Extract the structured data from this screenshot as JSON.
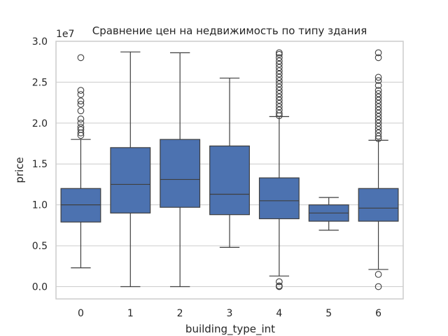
{
  "chart_data": {
    "type": "box",
    "title": "Сравнение цен на недвижимость по типу здания",
    "xlabel": "building_type_int",
    "ylabel": "price",
    "y_offset_label": "1e7",
    "ylim": [
      -0.15,
      3.0
    ],
    "y_ticks": [
      0.0,
      0.5,
      1.0,
      1.5,
      2.0,
      2.5,
      3.0
    ],
    "y_tick_labels": [
      "0.0",
      "0.5",
      "1.0",
      "1.5",
      "2.0",
      "2.5",
      "3.0"
    ],
    "grid": "y",
    "box_color": "#4c72b0",
    "categories": [
      "0",
      "1",
      "2",
      "3",
      "4",
      "5",
      "6"
    ],
    "boxes": [
      {
        "category": "0",
        "whisker_low": 0.23,
        "q1": 0.79,
        "median": 1.0,
        "q3": 1.2,
        "whisker_high": 1.8,
        "outliers": [
          2.8,
          2.4,
          2.35,
          2.27,
          2.23,
          2.15,
          2.05,
          2.0,
          1.95,
          1.92,
          1.88,
          1.85
        ]
      },
      {
        "category": "1",
        "whisker_low": 0.0,
        "q1": 0.9,
        "median": 1.25,
        "q3": 1.7,
        "whisker_high": 2.87,
        "outliers": []
      },
      {
        "category": "2",
        "whisker_low": 0.0,
        "q1": 0.97,
        "median": 1.31,
        "q3": 1.8,
        "whisker_high": 2.86,
        "outliers": []
      },
      {
        "category": "3",
        "whisker_low": 0.48,
        "q1": 0.88,
        "median": 1.13,
        "q3": 1.72,
        "whisker_high": 2.55,
        "outliers": []
      },
      {
        "category": "4",
        "whisker_low": 0.13,
        "q1": 0.83,
        "median": 1.05,
        "q3": 1.33,
        "whisker_high": 2.08,
        "outliers": [
          2.86,
          2.84,
          2.8,
          2.76,
          2.72,
          2.68,
          2.64,
          2.6,
          2.56,
          2.52,
          2.48,
          2.44,
          2.4,
          2.36,
          2.32,
          2.28,
          2.24,
          2.2,
          2.16,
          2.12,
          2.09,
          0.06,
          0.01,
          0.0
        ]
      },
      {
        "category": "5",
        "whisker_low": 0.69,
        "q1": 0.8,
        "median": 0.9,
        "q3": 1.0,
        "whisker_high": 1.09,
        "outliers": []
      },
      {
        "category": "6",
        "whisker_low": 0.21,
        "q1": 0.8,
        "median": 0.96,
        "q3": 1.2,
        "whisker_high": 1.79,
        "outliers": [
          2.86,
          2.8,
          2.56,
          2.52,
          2.46,
          2.4,
          2.36,
          2.32,
          2.28,
          2.24,
          2.2,
          2.16,
          2.12,
          2.08,
          2.04,
          2.0,
          1.96,
          1.92,
          1.88,
          1.84,
          1.81,
          0.15,
          0.0
        ]
      }
    ]
  }
}
